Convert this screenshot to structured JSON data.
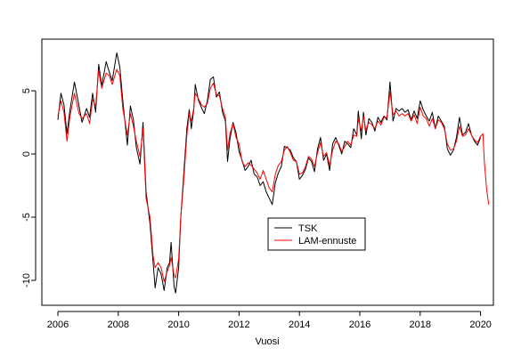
{
  "chart_data": {
    "type": "line",
    "title": "",
    "xlabel": "Vuosi",
    "ylabel": "",
    "xlim": [
      2006,
      2020.3
    ],
    "ylim": [
      -11.5,
      8.3
    ],
    "x_ticks": [
      2006,
      2008,
      2010,
      2012,
      2014,
      2016,
      2018,
      2020
    ],
    "x_tick_labels": [
      "2006",
      "2008",
      "2010",
      "2012",
      "2014",
      "2016",
      "2018",
      "2020"
    ],
    "y_ticks": [
      5,
      0,
      -5,
      -10
    ],
    "y_tick_labels": [
      "5",
      "0",
      "-5",
      "-10"
    ],
    "grid": false,
    "legend_position": "bottom-center",
    "series": [
      {
        "name": "TSK",
        "color": "#000000",
        "points": [
          [
            2006.0,
            2.7
          ],
          [
            2006.1,
            4.8
          ],
          [
            2006.2,
            3.9
          ],
          [
            2006.3,
            1.6
          ],
          [
            2006.4,
            3.5
          ],
          [
            2006.55,
            5.7
          ],
          [
            2006.7,
            3.8
          ],
          [
            2006.8,
            2.5
          ],
          [
            2006.95,
            3.6
          ],
          [
            2007.05,
            2.9
          ],
          [
            2007.15,
            4.8
          ],
          [
            2007.25,
            3.3
          ],
          [
            2007.35,
            7.1
          ],
          [
            2007.45,
            5.4
          ],
          [
            2007.6,
            7.3
          ],
          [
            2007.7,
            6.5
          ],
          [
            2007.8,
            5.8
          ],
          [
            2007.95,
            8.0
          ],
          [
            2008.05,
            6.9
          ],
          [
            2008.15,
            4.2
          ],
          [
            2008.3,
            0.7
          ],
          [
            2008.4,
            3.8
          ],
          [
            2008.5,
            2.7
          ],
          [
            2008.6,
            0.5
          ],
          [
            2008.72,
            -0.8
          ],
          [
            2008.82,
            2.5
          ],
          [
            2008.92,
            -3.0
          ],
          [
            2009.05,
            -5.5
          ],
          [
            2009.15,
            -8.5
          ],
          [
            2009.22,
            -10.6
          ],
          [
            2009.32,
            -9.0
          ],
          [
            2009.42,
            -9.5
          ],
          [
            2009.52,
            -10.8
          ],
          [
            2009.62,
            -9.0
          ],
          [
            2009.7,
            -8.6
          ],
          [
            2009.75,
            -7.0
          ],
          [
            2009.85,
            -10.5
          ],
          [
            2009.9,
            -11.0
          ],
          [
            2010.0,
            -9.0
          ],
          [
            2010.07,
            -5.0
          ],
          [
            2010.17,
            -1.5
          ],
          [
            2010.27,
            2.0
          ],
          [
            2010.35,
            3.5
          ],
          [
            2010.42,
            2.0
          ],
          [
            2010.5,
            3.5
          ],
          [
            2010.55,
            5.5
          ],
          [
            2010.65,
            4.3
          ],
          [
            2010.75,
            3.7
          ],
          [
            2010.85,
            3.2
          ],
          [
            2010.95,
            4.2
          ],
          [
            2011.05,
            5.9
          ],
          [
            2011.15,
            6.1
          ],
          [
            2011.25,
            4.5
          ],
          [
            2011.35,
            4.9
          ],
          [
            2011.45,
            3.3
          ],
          [
            2011.55,
            2.6
          ],
          [
            2011.62,
            -0.6
          ],
          [
            2011.7,
            1.2
          ],
          [
            2011.8,
            2.5
          ],
          [
            2011.9,
            1.7
          ],
          [
            2012.0,
            0.2
          ],
          [
            2012.1,
            -0.5
          ],
          [
            2012.2,
            -1.3
          ],
          [
            2012.3,
            -1.0
          ],
          [
            2012.4,
            -0.5
          ],
          [
            2012.5,
            -1.6
          ],
          [
            2012.6,
            -1.8
          ],
          [
            2012.7,
            -2.5
          ],
          [
            2012.8,
            -2.2
          ],
          [
            2012.9,
            -3.0
          ],
          [
            2013.0,
            -3.5
          ],
          [
            2013.1,
            -4.0
          ],
          [
            2013.2,
            -2.3
          ],
          [
            2013.3,
            -1.5
          ],
          [
            2013.4,
            -1.0
          ],
          [
            2013.5,
            0.6
          ],
          [
            2013.6,
            0.5
          ],
          [
            2013.7,
            0.3
          ],
          [
            2013.8,
            -0.3
          ],
          [
            2013.9,
            -0.6
          ],
          [
            2014.0,
            -2.0
          ],
          [
            2014.1,
            -1.7
          ],
          [
            2014.2,
            -1.2
          ],
          [
            2014.3,
            -0.3
          ],
          [
            2014.4,
            -0.6
          ],
          [
            2014.5,
            -1.4
          ],
          [
            2014.6,
            0.4
          ],
          [
            2014.7,
            1.3
          ],
          [
            2014.8,
            -0.5
          ],
          [
            2014.9,
            0.0
          ],
          [
            2015.0,
            -1.3
          ],
          [
            2015.1,
            0.8
          ],
          [
            2015.2,
            1.3
          ],
          [
            2015.3,
            0.7
          ],
          [
            2015.4,
            0.0
          ],
          [
            2015.5,
            1.0
          ],
          [
            2015.6,
            0.8
          ],
          [
            2015.7,
            0.5
          ],
          [
            2015.8,
            2.0
          ],
          [
            2015.9,
            1.5
          ],
          [
            2015.95,
            3.4
          ],
          [
            2016.05,
            1.2
          ],
          [
            2016.12,
            3.3
          ],
          [
            2016.2,
            1.5
          ],
          [
            2016.3,
            2.8
          ],
          [
            2016.4,
            2.5
          ],
          [
            2016.5,
            1.8
          ],
          [
            2016.6,
            2.9
          ],
          [
            2016.7,
            2.5
          ],
          [
            2016.8,
            3.0
          ],
          [
            2016.9,
            2.7
          ],
          [
            2017.0,
            5.7
          ],
          [
            2017.1,
            2.6
          ],
          [
            2017.2,
            3.6
          ],
          [
            2017.3,
            3.4
          ],
          [
            2017.4,
            3.6
          ],
          [
            2017.5,
            3.3
          ],
          [
            2017.6,
            3.5
          ],
          [
            2017.7,
            2.7
          ],
          [
            2017.8,
            3.4
          ],
          [
            2017.9,
            2.8
          ],
          [
            2018.0,
            4.2
          ],
          [
            2018.1,
            3.5
          ],
          [
            2018.2,
            3.0
          ],
          [
            2018.3,
            2.6
          ],
          [
            2018.4,
            3.3
          ],
          [
            2018.5,
            2.0
          ],
          [
            2018.6,
            3.0
          ],
          [
            2018.7,
            2.6
          ],
          [
            2018.8,
            2.2
          ],
          [
            2018.9,
            0.4
          ],
          [
            2019.0,
            -0.1
          ],
          [
            2019.1,
            0.3
          ],
          [
            2019.2,
            1.3
          ],
          [
            2019.3,
            2.9
          ],
          [
            2019.4,
            1.5
          ],
          [
            2019.5,
            1.7
          ],
          [
            2019.6,
            2.4
          ],
          [
            2019.7,
            1.5
          ],
          [
            2019.8,
            1.0
          ],
          [
            2019.9,
            0.7
          ],
          [
            2020.0,
            1.3
          ]
        ]
      },
      {
        "name": "LAM-ennuste",
        "color": "#ff0000",
        "points": [
          [
            2006.0,
            3.0
          ],
          [
            2006.1,
            4.2
          ],
          [
            2006.2,
            3.3
          ],
          [
            2006.3,
            1.0
          ],
          [
            2006.4,
            3.0
          ],
          [
            2006.55,
            4.8
          ],
          [
            2006.7,
            3.2
          ],
          [
            2006.8,
            2.8
          ],
          [
            2006.95,
            3.2
          ],
          [
            2007.05,
            2.4
          ],
          [
            2007.15,
            4.3
          ],
          [
            2007.25,
            3.8
          ],
          [
            2007.35,
            6.6
          ],
          [
            2007.45,
            5.2
          ],
          [
            2007.6,
            6.4
          ],
          [
            2007.7,
            6.2
          ],
          [
            2007.8,
            5.5
          ],
          [
            2007.95,
            6.7
          ],
          [
            2008.05,
            6.2
          ],
          [
            2008.15,
            3.6
          ],
          [
            2008.3,
            1.5
          ],
          [
            2008.4,
            3.2
          ],
          [
            2008.5,
            2.2
          ],
          [
            2008.6,
            1.0
          ],
          [
            2008.72,
            -0.2
          ],
          [
            2008.82,
            2.0
          ],
          [
            2008.92,
            -3.5
          ],
          [
            2009.05,
            -5.0
          ],
          [
            2009.15,
            -8.0
          ],
          [
            2009.22,
            -9.0
          ],
          [
            2009.32,
            -8.6
          ],
          [
            2009.42,
            -9.0
          ],
          [
            2009.52,
            -10.1
          ],
          [
            2009.62,
            -9.3
          ],
          [
            2009.7,
            -8.8
          ],
          [
            2009.75,
            -8.2
          ],
          [
            2009.85,
            -9.6
          ],
          [
            2009.9,
            -9.8
          ],
          [
            2010.0,
            -8.3
          ],
          [
            2010.07,
            -5.0
          ],
          [
            2010.17,
            -2.0
          ],
          [
            2010.27,
            1.5
          ],
          [
            2010.35,
            3.2
          ],
          [
            2010.42,
            2.6
          ],
          [
            2010.5,
            3.6
          ],
          [
            2010.55,
            4.8
          ],
          [
            2010.65,
            4.4
          ],
          [
            2010.75,
            3.9
          ],
          [
            2010.85,
            3.7
          ],
          [
            2010.95,
            4.0
          ],
          [
            2011.05,
            5.2
          ],
          [
            2011.15,
            5.6
          ],
          [
            2011.25,
            4.7
          ],
          [
            2011.35,
            4.6
          ],
          [
            2011.45,
            3.6
          ],
          [
            2011.55,
            2.9
          ],
          [
            2011.62,
            0.3
          ],
          [
            2011.7,
            1.6
          ],
          [
            2011.8,
            2.4
          ],
          [
            2011.9,
            1.3
          ],
          [
            2012.0,
            0.8
          ],
          [
            2012.1,
            -0.6
          ],
          [
            2012.2,
            -1.0
          ],
          [
            2012.3,
            -0.7
          ],
          [
            2012.4,
            -0.9
          ],
          [
            2012.5,
            -1.2
          ],
          [
            2012.6,
            -1.5
          ],
          [
            2012.7,
            -2.0
          ],
          [
            2012.8,
            -1.3
          ],
          [
            2012.9,
            -2.0
          ],
          [
            2013.0,
            -2.7
          ],
          [
            2013.1,
            -3.0
          ],
          [
            2013.2,
            -1.6
          ],
          [
            2013.3,
            -0.9
          ],
          [
            2013.4,
            -0.6
          ],
          [
            2013.5,
            0.3
          ],
          [
            2013.6,
            0.6
          ],
          [
            2013.7,
            0.1
          ],
          [
            2013.8,
            -0.5
          ],
          [
            2013.9,
            -0.6
          ],
          [
            2014.0,
            -1.6
          ],
          [
            2014.1,
            -1.5
          ],
          [
            2014.2,
            -1.0
          ],
          [
            2014.3,
            -0.2
          ],
          [
            2014.4,
            -0.4
          ],
          [
            2014.5,
            -1.0
          ],
          [
            2014.6,
            0.1
          ],
          [
            2014.7,
            0.9
          ],
          [
            2014.8,
            -0.2
          ],
          [
            2014.9,
            0.1
          ],
          [
            2015.0,
            -0.9
          ],
          [
            2015.1,
            0.3
          ],
          [
            2015.2,
            1.0
          ],
          [
            2015.3,
            0.8
          ],
          [
            2015.4,
            0.2
          ],
          [
            2015.5,
            0.6
          ],
          [
            2015.6,
            1.0
          ],
          [
            2015.7,
            0.7
          ],
          [
            2015.8,
            1.5
          ],
          [
            2015.9,
            1.4
          ],
          [
            2015.95,
            2.8
          ],
          [
            2016.05,
            1.8
          ],
          [
            2016.12,
            3.0
          ],
          [
            2016.2,
            1.9
          ],
          [
            2016.3,
            2.5
          ],
          [
            2016.4,
            2.3
          ],
          [
            2016.5,
            2.0
          ],
          [
            2016.6,
            2.6
          ],
          [
            2016.7,
            2.3
          ],
          [
            2016.8,
            2.9
          ],
          [
            2016.9,
            2.9
          ],
          [
            2017.0,
            4.9
          ],
          [
            2017.1,
            3.1
          ],
          [
            2017.2,
            3.4
          ],
          [
            2017.3,
            3.0
          ],
          [
            2017.4,
            3.2
          ],
          [
            2017.5,
            3.0
          ],
          [
            2017.6,
            3.2
          ],
          [
            2017.7,
            2.6
          ],
          [
            2017.8,
            3.1
          ],
          [
            2017.9,
            2.4
          ],
          [
            2018.0,
            3.7
          ],
          [
            2018.1,
            3.0
          ],
          [
            2018.2,
            2.8
          ],
          [
            2018.3,
            2.2
          ],
          [
            2018.4,
            2.8
          ],
          [
            2018.5,
            2.0
          ],
          [
            2018.6,
            2.7
          ],
          [
            2018.7,
            2.5
          ],
          [
            2018.8,
            2.0
          ],
          [
            2018.9,
            0.8
          ],
          [
            2019.0,
            0.3
          ],
          [
            2019.1,
            0.4
          ],
          [
            2019.2,
            1.0
          ],
          [
            2019.3,
            2.2
          ],
          [
            2019.4,
            1.4
          ],
          [
            2019.5,
            1.5
          ],
          [
            2019.6,
            2.0
          ],
          [
            2019.7,
            1.5
          ],
          [
            2019.8,
            1.1
          ],
          [
            2019.9,
            0.9
          ],
          [
            2020.0,
            1.4
          ],
          [
            2020.08,
            1.6
          ],
          [
            2020.12,
            -0.5
          ],
          [
            2020.2,
            -2.8
          ],
          [
            2020.27,
            -4.0
          ]
        ]
      }
    ]
  }
}
